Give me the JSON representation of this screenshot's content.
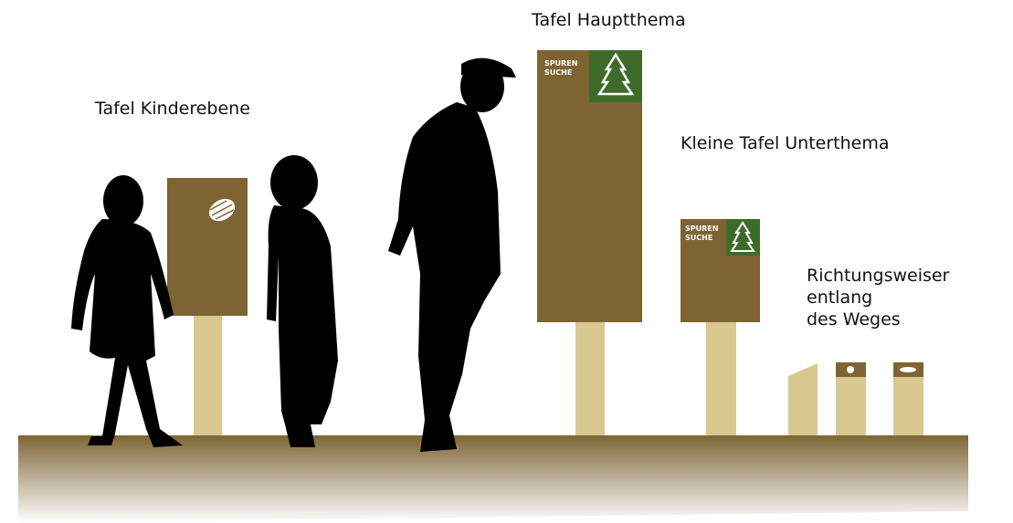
{
  "labels": {
    "main": "Tafel Hauptthema",
    "kids": "Tafel Kinderebene",
    "small": "Kleine Tafel Unterthema",
    "direction": [
      "Richtungsweiser",
      "entlang",
      "des Weges"
    ]
  },
  "logos": [
    [
      "SPUREN",
      "SUCHE"
    ],
    [
      "SPUREN",
      "SUCHE"
    ]
  ]
}
